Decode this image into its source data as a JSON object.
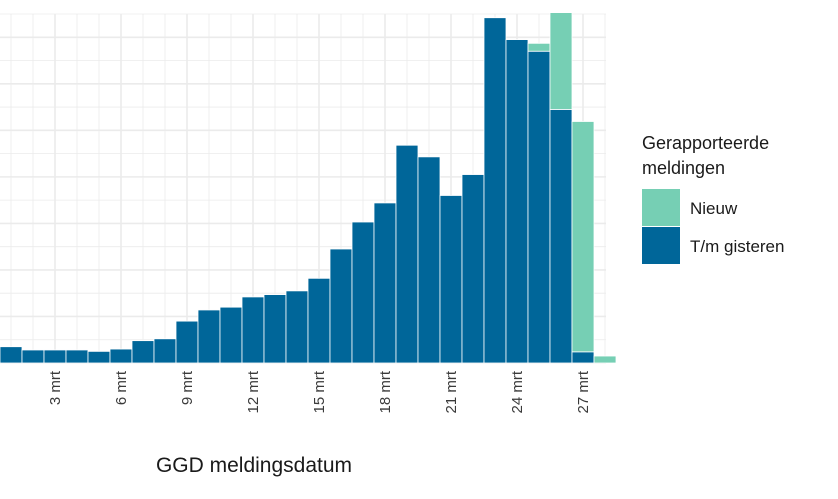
{
  "chart_data": {
    "type": "bar",
    "stacked": true,
    "xlabel": "GGD meldingsdatum",
    "ylabel": "",
    "ylim": [
      0,
      7.5
    ],
    "grid": true,
    "legend": {
      "title": "Gerapporteerde meldingen",
      "title_lines": [
        "Gerapporteerde",
        "meldingen"
      ],
      "placement": "right"
    },
    "x": [
      1,
      2,
      3,
      4,
      5,
      6,
      7,
      8,
      9,
      10,
      11,
      12,
      13,
      14,
      15,
      16,
      17,
      18,
      19,
      20,
      21,
      22,
      23,
      24,
      25,
      26,
      27,
      28,
      29
    ],
    "x_ticks": [
      3,
      6,
      9,
      12,
      15,
      18,
      21,
      24,
      27
    ],
    "tick_labels": [
      "3 mrt",
      "6 mrt",
      "9 mrt",
      "12 mrt",
      "15 mrt",
      "18 mrt",
      "21 mrt",
      "24 mrt",
      "27 mrt"
    ],
    "series": [
      {
        "name": "T/m gisteren",
        "color": "#006699",
        "values": [
          0.35,
          0.28,
          0.28,
          0.28,
          0.25,
          0.3,
          0.48,
          0.52,
          0.9,
          1.14,
          1.2,
          1.42,
          1.47,
          1.55,
          1.82,
          2.45,
          3.03,
          3.44,
          4.68,
          4.43,
          3.6,
          4.05,
          7.42,
          6.95,
          6.7,
          5.45,
          0.24,
          0,
          0
        ]
      },
      {
        "name": "Nieuw",
        "color": "#76cfb4",
        "values": [
          0,
          0,
          0,
          0,
          0,
          0,
          0,
          0,
          0,
          0,
          0,
          0,
          0,
          0,
          0,
          0,
          0,
          0,
          0,
          0,
          0,
          0,
          0,
          0,
          0.17,
          2.08,
          4.95,
          0.15,
          0
        ]
      }
    ]
  }
}
